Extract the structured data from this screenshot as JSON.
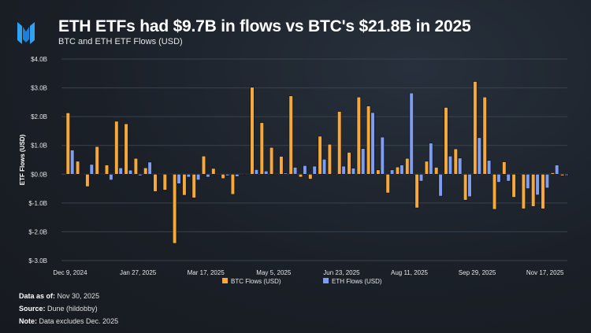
{
  "header": {
    "title": "ETH ETFs had $9.7B in flows vs BTC's $21.8B in 2025",
    "subtitle": "BTC and ETH ETF Flows (USD)"
  },
  "chart_data": {
    "type": "bar",
    "title": "ETH ETFs had $9.7B in flows vs BTC's $21.8B in 2025",
    "subtitle": "BTC and ETH ETF Flows (USD)",
    "xlabel": "",
    "ylabel": "ETF Flows (USD)",
    "ylim": [
      -3,
      4
    ],
    "yticks": [
      {
        "v": 4,
        "label": "$4.0B"
      },
      {
        "v": 3,
        "label": "$3.0B"
      },
      {
        "v": 2,
        "label": "$2.0B"
      },
      {
        "v": 1,
        "label": "$1.0B"
      },
      {
        "v": 0,
        "label": "$0.0B"
      },
      {
        "v": -1,
        "label": "$-1.0B"
      },
      {
        "v": -2,
        "label": "$-2.0B"
      },
      {
        "v": -3,
        "label": "$-3.0B"
      }
    ],
    "xticks": [
      {
        "i": 0,
        "label": "Dec 9, 2024"
      },
      {
        "i": 7,
        "label": "Jan 27, 2025"
      },
      {
        "i": 14,
        "label": "Mar 17, 2025"
      },
      {
        "i": 21,
        "label": "May 5, 2025"
      },
      {
        "i": 28,
        "label": "Jun 23, 2025"
      },
      {
        "i": 35,
        "label": "Aug 11, 2025"
      },
      {
        "i": 42,
        "label": "Sep 29, 2025"
      },
      {
        "i": 49,
        "label": "Nov 17, 2025"
      }
    ],
    "grid": true,
    "legend": "bottom",
    "units": "USD billions, weekly",
    "series": [
      {
        "name": "BTC Flows (USD)",
        "color": "#f6a93b",
        "values": [
          2.13,
          0.45,
          -0.43,
          0.96,
          0.32,
          1.84,
          1.75,
          0.55,
          0.22,
          -0.6,
          -0.55,
          -2.4,
          -0.73,
          -0.82,
          0.63,
          0.2,
          -0.15,
          -0.7,
          0.0,
          3.02,
          1.79,
          0.93,
          0.62,
          2.72,
          -0.1,
          -0.17,
          1.32,
          1.04,
          2.18,
          0.76,
          2.68,
          2.37,
          0.15,
          -0.65,
          0.25,
          0.55,
          -1.17,
          0.45,
          0.24,
          2.32,
          0.88,
          -0.9,
          3.22,
          2.68,
          -1.22,
          0.43,
          -0.8,
          -1.2,
          -1.12,
          -1.2,
          0.05,
          -0.05
        ]
      },
      {
        "name": "ETH Flows (USD)",
        "color": "#7f9df0",
        "values": [
          0.84,
          0.02,
          0.34,
          0.0,
          -0.2,
          0.22,
          0.14,
          -0.05,
          0.42,
          0.0,
          0.0,
          -0.33,
          -0.1,
          -0.2,
          -0.1,
          0.0,
          -0.05,
          -0.08,
          -0.02,
          0.16,
          0.11,
          -0.02,
          0.04,
          0.24,
          0.3,
          0.28,
          0.52,
          0.02,
          0.28,
          0.21,
          0.89,
          2.14,
          1.29,
          0.15,
          0.32,
          2.82,
          -0.24,
          1.08,
          -0.76,
          0.63,
          0.56,
          -0.78,
          1.27,
          0.48,
          -0.28,
          -0.24,
          0.0,
          -0.5,
          -0.72,
          -0.48,
          0.32,
          -0.04
        ]
      }
    ]
  },
  "footer": {
    "data_as_of_label": "Data as of:",
    "data_as_of": "Nov 30, 2025",
    "source_label": "Source:",
    "source": "Dune (hildobby)",
    "note_label": "Note:",
    "note": "Data excludes Dec. 2025"
  }
}
